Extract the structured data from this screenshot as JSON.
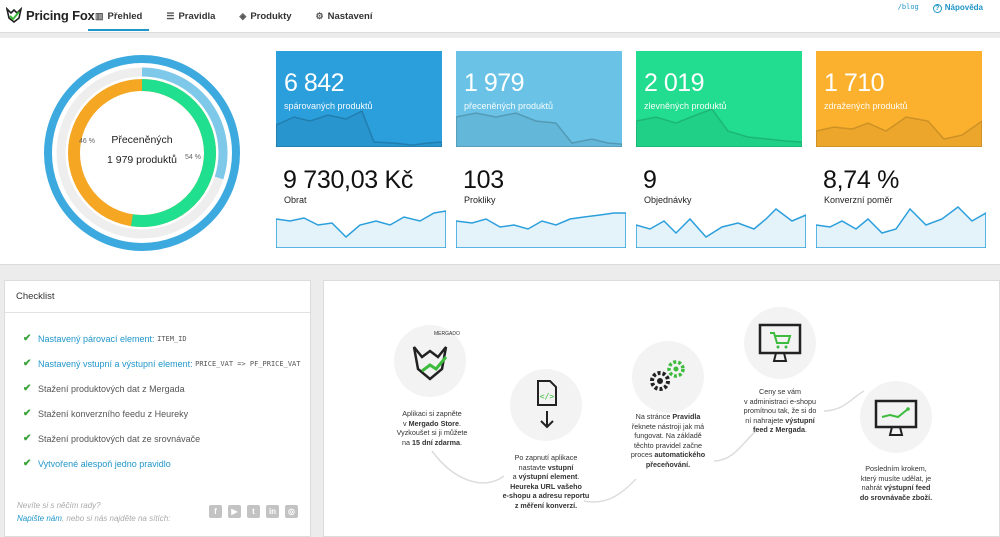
{
  "app": {
    "name": "Pricing Fox"
  },
  "nav": [
    {
      "label": "Přehled",
      "icon": "chart-bar-icon",
      "active": true
    },
    {
      "label": "Pravidla",
      "icon": "list-icon",
      "active": false
    },
    {
      "label": "Produkty",
      "icon": "tags-icon",
      "active": false
    },
    {
      "label": "Nastavení",
      "icon": "gear-icon",
      "active": false
    }
  ],
  "toplinks": {
    "blog": "/blog",
    "help": "Nápověda"
  },
  "donut": {
    "title": "Přeceněných",
    "subtitle": "1 979 produktů",
    "pct_left": "46 %",
    "pct_right": "54 %",
    "share_repriced": 0.46,
    "share_other": 0.54
  },
  "tiles": [
    {
      "value": "6 842",
      "label": "spárovaných produktů",
      "color": "#2b9fdc"
    },
    {
      "value": "1 979",
      "label": "přeceněných produktů",
      "color": "#6ac3e6"
    },
    {
      "value": "2 019",
      "label": "zlevněných produktů",
      "color": "#22dd8f"
    },
    {
      "value": "1 710",
      "label": "zdražených produktů",
      "color": "#fbb12e"
    }
  ],
  "stats": [
    {
      "value": "9 730,03 Kč",
      "label": "Obrat"
    },
    {
      "value": "103",
      "label": "Prokliky"
    },
    {
      "value": "9",
      "label": "Objednávky"
    },
    {
      "value": "8,74 %",
      "label": "Konverzní poměr"
    }
  ],
  "checklist": {
    "title": "Checklist",
    "items": [
      {
        "text": "Nastavený párovací element:",
        "code": "ITEM_ID",
        "done": true
      },
      {
        "text": "Nastavený vstupní a výstupní element:",
        "code": "PRICE_VAT => PF_PRICE_VAT",
        "done": true
      },
      {
        "text": "Stažení produktových dat z Mergada",
        "code": "",
        "done": false
      },
      {
        "text": "Stažení konverzního feedu z Heureky",
        "code": "",
        "done": false
      },
      {
        "text": "Stažení produktových dat ze srovnávače",
        "code": "",
        "done": false
      },
      {
        "text": "Vytvořené alespoň jedno pravidlo",
        "code": "",
        "done": true
      }
    ],
    "advice_line1": "Nevíte si s něčím rady?",
    "advice_link": "Napište nám",
    "advice_line2": ", nebo si nás najděte na sítích:"
  },
  "steps": [
    {
      "l1": "Aplikaci si zapněte",
      "l2a": "v ",
      "l2b": "Mergado Store",
      "l2c": ".",
      "l3": "Vyzkoušet si ji můžete",
      "l4a": "na ",
      "l4b": "15 dní zdarma",
      "l4c": ".",
      "badge": "MERGADO"
    },
    {
      "l1": "Po zapnutí aplikace",
      "l2a": "nastavte ",
      "l2b": "vstupní",
      "l3a": "a ",
      "l3b": "výstupní element",
      "l3c": ".",
      "l4": "Heureka URL vašeho",
      "l5": "e-shopu a adresu reportu",
      "l6": "z měření konverzí."
    },
    {
      "l1a": "Na stránce ",
      "l1b": "Pravidla",
      "l2": "řeknete nástroji jak má",
      "l3": "fungovat. Na základě",
      "l4": "těchto pravidel začne",
      "l5a": "proces ",
      "l5b": "automatického",
      "l6": "přeceňování."
    },
    {
      "l1": "Ceny se vám",
      "l2": "v administraci e-shopu",
      "l3": "promítnou tak, že si do",
      "l4a": "ní nahrajete ",
      "l4b": "výstupní",
      "l5a": "feed z Mergada",
      "l5b": "."
    },
    {
      "l1": "Posledním krokem,",
      "l2": "který musíte udělat, je",
      "l3a": "nahrát ",
      "l3b": "výstupní feed",
      "l4": "do srovnávače zboží."
    }
  ]
}
